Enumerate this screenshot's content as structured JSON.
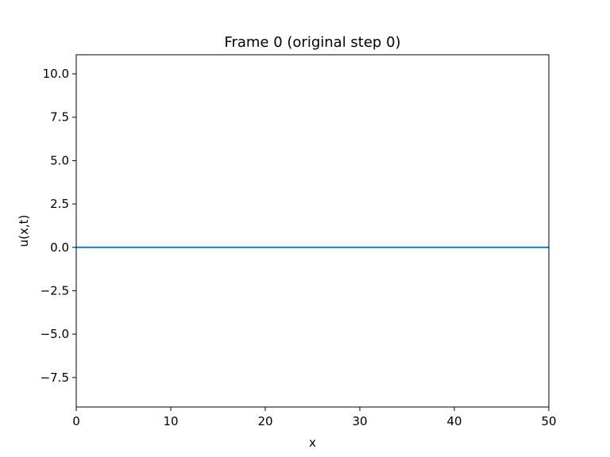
{
  "chart_data": {
    "type": "line",
    "title": "Frame 0 (original step 0)",
    "xlabel": "x",
    "ylabel": "u(x,t)",
    "xlim": [
      0,
      50
    ],
    "ylim": [
      -9.2,
      11.1
    ],
    "xticks": [
      0,
      10,
      20,
      30,
      40,
      50
    ],
    "xtick_labels": [
      "0",
      "10",
      "20",
      "30",
      "40",
      "50"
    ],
    "yticks": [
      -7.5,
      -5.0,
      -2.5,
      0.0,
      2.5,
      5.0,
      7.5,
      10.0
    ],
    "ytick_labels": [
      "−7.5",
      "−5.0",
      "−2.5",
      "0.0",
      "2.5",
      "5.0",
      "7.5",
      "10.0"
    ],
    "grid": false,
    "legend": "none",
    "series": [
      {
        "color": "#1f77b4",
        "x": [
          0,
          50
        ],
        "y": [
          0,
          0
        ]
      }
    ]
  }
}
